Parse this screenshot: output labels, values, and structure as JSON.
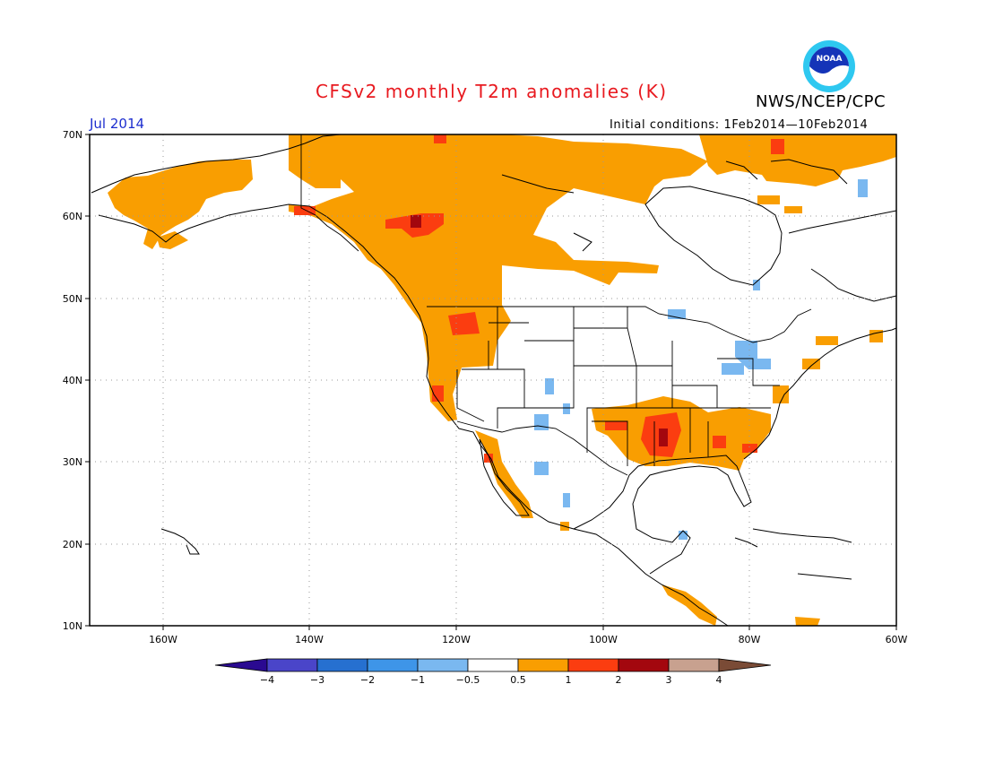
{
  "title": "CFSv2 monthly T2m anomalies (K)",
  "agency": "NWS/NCEP/CPC",
  "month": "Jul 2014",
  "initial_conditions": "Initial conditions: 1Feb2014—10Feb2014",
  "logo_text": "NOAA",
  "lat_labels": [
    "70N",
    "60N",
    "50N",
    "40N",
    "30N",
    "20N",
    "10N"
  ],
  "lon_labels": [
    "160W",
    "140W",
    "120W",
    "100W",
    "80W",
    "60W"
  ],
  "colorbar": {
    "labels": [
      "−4",
      "−3",
      "−2",
      "−1",
      "−0.5",
      "0.5",
      "1",
      "2",
      "3",
      "4"
    ],
    "colors": [
      "#2a0a91",
      "#4a45c9",
      "#2670d0",
      "#3e95e8",
      "#7ab8f0",
      "#ffffff",
      "#f99e01",
      "#fb3d10",
      "#a3070e",
      "#c8a18f",
      "#7a4b36"
    ]
  },
  "anomaly_colors": {
    "warm_0_5_to_1": "#f99e01",
    "warm_1_to_2": "#fb3d10",
    "warm_2_to_3": "#a3070e",
    "cool_minus_0_5_to_minus_1": "#7ab8f0"
  }
}
